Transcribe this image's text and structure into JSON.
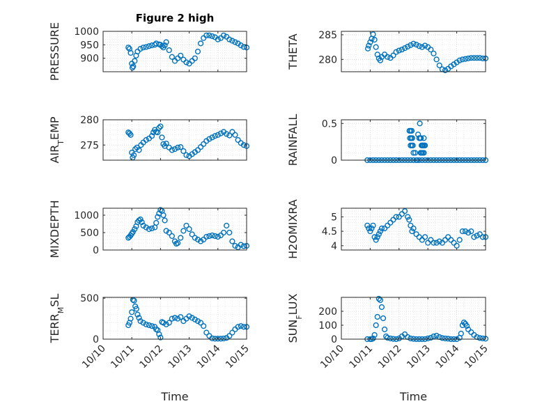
{
  "figure": {
    "title": "Figure 2 high",
    "marker_color": "#0072BD",
    "x_tick_labels": [
      "10/10",
      "10/11",
      "10/12",
      "10/13",
      "10/14",
      "10/15"
    ]
  },
  "chart_data": [
    {
      "type": "scatter",
      "id": "pressure",
      "ylabel": "PRESSURE",
      "xlabel": "",
      "xlim": [
        0,
        5
      ],
      "ylim": [
        850,
        1000
      ],
      "yticks": [
        900,
        950,
        1000
      ],
      "x": [
        0.88,
        0.92,
        0.96,
        1.0,
        1.02,
        1.05,
        1.1,
        1.15,
        1.2,
        1.3,
        1.4,
        1.5,
        1.6,
        1.7,
        1.8,
        1.85,
        1.95,
        2.0,
        2.05,
        2.1,
        2.15,
        2.2,
        2.3,
        2.4,
        2.5,
        2.6,
        2.7,
        2.8,
        2.9,
        3.0,
        3.1,
        3.2,
        3.3,
        3.4,
        3.5,
        3.6,
        3.7,
        3.8,
        3.9,
        4.0,
        4.1,
        4.2,
        4.3,
        4.4,
        4.5,
        4.6,
        4.7,
        4.8,
        4.9,
        5.0
      ],
      "y": [
        940,
        935,
        920,
        880,
        865,
        870,
        890,
        910,
        925,
        935,
        940,
        942,
        945,
        948,
        950,
        955,
        952,
        950,
        945,
        940,
        948,
        960,
        930,
        905,
        890,
        900,
        910,
        895,
        885,
        880,
        890,
        900,
        925,
        955,
        975,
        985,
        985,
        982,
        978,
        970,
        975,
        985,
        980,
        970,
        965,
        960,
        955,
        948,
        942,
        940
      ]
    },
    {
      "type": "scatter",
      "id": "theta",
      "ylabel": "THETA",
      "xlabel": "",
      "xlim": [
        0,
        5
      ],
      "ylim": [
        277.5,
        285.7
      ],
      "yticks": [
        280,
        285
      ],
      "x": [
        0.92,
        0.95,
        1.0,
        1.05,
        1.1,
        1.15,
        1.2,
        1.25,
        1.3,
        1.35,
        1.4,
        1.5,
        1.6,
        1.7,
        1.8,
        1.9,
        2.0,
        2.1,
        2.2,
        2.3,
        2.4,
        2.5,
        2.6,
        2.7,
        2.8,
        2.9,
        3.0,
        3.1,
        3.2,
        3.3,
        3.4,
        3.5,
        3.6,
        3.7,
        3.8,
        3.9,
        4.0,
        4.1,
        4.2,
        4.3,
        4.4,
        4.5,
        4.6,
        4.7,
        4.8,
        4.9,
        5.0
      ],
      "y": [
        282.2,
        282.8,
        283.5,
        284.2,
        285.1,
        284.0,
        282.5,
        281.0,
        280.2,
        279.8,
        280.5,
        281.0,
        280.5,
        280.3,
        280.8,
        281.5,
        281.8,
        282.0,
        282.3,
        282.6,
        282.9,
        283.2,
        283.0,
        282.7,
        282.5,
        282.8,
        282.5,
        282.0,
        281.2,
        280.0,
        278.8,
        278.0,
        277.8,
        278.1,
        278.6,
        279.0,
        279.4,
        279.8,
        280.0,
        280.1,
        280.2,
        280.3,
        280.3,
        280.3,
        280.3,
        280.2,
        280.2
      ]
    },
    {
      "type": "scatter",
      "id": "air_temp",
      "ylabel": "AIR_TEMP",
      "xlabel": "",
      "xlim": [
        0,
        5
      ],
      "ylim": [
        272,
        280
      ],
      "yticks": [
        275,
        280
      ],
      "x": [
        0.88,
        0.92,
        0.96,
        1.0,
        1.03,
        1.07,
        1.12,
        1.18,
        1.25,
        1.32,
        1.4,
        1.5,
        1.6,
        1.7,
        1.75,
        1.8,
        1.85,
        1.9,
        1.95,
        2.0,
        2.05,
        2.1,
        2.15,
        2.2,
        2.3,
        2.4,
        2.5,
        2.6,
        2.7,
        2.8,
        2.9,
        3.0,
        3.1,
        3.2,
        3.3,
        3.4,
        3.5,
        3.6,
        3.7,
        3.8,
        3.9,
        4.0,
        4.1,
        4.2,
        4.3,
        4.4,
        4.5,
        4.6,
        4.7,
        4.8,
        4.9,
        5.0
      ],
      "y": [
        277.5,
        277.3,
        277.0,
        273.5,
        272.5,
        273.0,
        274.2,
        274.5,
        274.0,
        275.0,
        275.5,
        276.0,
        276.3,
        276.8,
        277.5,
        278.0,
        277.6,
        277.5,
        278.4,
        278.7,
        276.5,
        275.2,
        274.8,
        275.3,
        274.5,
        274.0,
        274.2,
        274.5,
        274.6,
        273.8,
        273.0,
        272.8,
        273.2,
        273.6,
        274.0,
        274.6,
        275.2,
        275.8,
        276.2,
        276.5,
        276.8,
        277.0,
        277.3,
        277.6,
        277.2,
        276.9,
        277.6,
        277.0,
        276.0,
        275.4,
        275.0,
        274.8
      ]
    },
    {
      "type": "scatter",
      "id": "rainfall",
      "ylabel": "RAINFALL",
      "xlabel": "",
      "xlim": [
        0,
        5
      ],
      "ylim": [
        0,
        0.55
      ],
      "yticks": [
        0,
        0.5
      ],
      "x": [
        0.9,
        1.0,
        1.1,
        1.2,
        1.3,
        1.4,
        1.5,
        1.6,
        1.7,
        1.8,
        1.9,
        2.0,
        2.1,
        2.2,
        2.3,
        2.4,
        2.5,
        2.6,
        2.7,
        2.8,
        2.9,
        3.0,
        3.1,
        3.2,
        3.3,
        3.4,
        3.5,
        3.6,
        3.7,
        3.8,
        3.9,
        4.0,
        4.1,
        4.2,
        4.3,
        4.4,
        4.5,
        4.6,
        4.7,
        4.8,
        4.9,
        5.0,
        2.36,
        2.4,
        2.44,
        2.38,
        2.42,
        2.46,
        2.4,
        2.44,
        2.48,
        2.5,
        2.56,
        2.62,
        2.66,
        2.7,
        2.74,
        2.78,
        2.82,
        2.86,
        2.72,
        2.76,
        2.8,
        2.84,
        2.88,
        2.75,
        2.78,
        2.82,
        2.86,
        2.9
      ],
      "y": [
        0,
        0,
        0,
        0,
        0,
        0,
        0,
        0,
        0,
        0,
        0,
        0,
        0,
        0,
        0,
        0,
        0,
        0,
        0,
        0,
        0,
        0,
        0,
        0,
        0,
        0,
        0,
        0,
        0,
        0,
        0,
        0,
        0,
        0,
        0,
        0,
        0,
        0,
        0,
        0,
        0,
        0,
        0.4,
        0.4,
        0.4,
        0.3,
        0.3,
        0.3,
        0.2,
        0.2,
        0.2,
        0.1,
        0.1,
        0.0,
        0.35,
        0.3,
        0.3,
        0.2,
        0.2,
        0.1,
        0.5,
        0.3,
        0.2,
        0.2,
        0.2,
        0.1,
        0.1,
        0.1,
        0.3,
        0.2
      ]
    },
    {
      "type": "scatter",
      "id": "mixdepth",
      "ylabel": "MIXDEPTH",
      "xlabel": "",
      "xlim": [
        0,
        5
      ],
      "ylim": [
        0,
        1200
      ],
      "yticks": [
        0,
        500,
        1000
      ],
      "x": [
        0.88,
        0.92,
        0.96,
        1.0,
        1.04,
        1.1,
        1.15,
        1.2,
        1.25,
        1.3,
        1.35,
        1.4,
        1.5,
        1.6,
        1.7,
        1.8,
        1.85,
        1.9,
        1.95,
        2.0,
        2.05,
        2.1,
        2.15,
        2.2,
        2.3,
        2.4,
        2.5,
        2.55,
        2.6,
        2.7,
        2.8,
        2.9,
        3.0,
        3.1,
        3.2,
        3.3,
        3.4,
        3.5,
        3.6,
        3.7,
        3.8,
        3.9,
        4.0,
        4.1,
        4.2,
        4.3,
        4.4,
        4.5,
        4.6,
        4.7,
        4.8,
        4.9,
        5.0
      ],
      "y": [
        350,
        380,
        420,
        470,
        520,
        600,
        680,
        800,
        850,
        880,
        800,
        700,
        650,
        600,
        620,
        650,
        780,
        950,
        1050,
        1150,
        1120,
        1000,
        850,
        550,
        500,
        400,
        250,
        180,
        200,
        350,
        550,
        700,
        600,
        450,
        350,
        300,
        250,
        300,
        380,
        400,
        420,
        400,
        380,
        420,
        500,
        700,
        500,
        250,
        120,
        80,
        150,
        110,
        120
      ]
    },
    {
      "type": "scatter",
      "id": "h2omixra",
      "ylabel": "H2OMIXRA",
      "xlabel": "",
      "xlim": [
        0,
        5
      ],
      "ylim": [
        3.85,
        5.3
      ],
      "yticks": [
        4,
        4.5,
        5
      ],
      "x": [
        0.9,
        0.95,
        1.0,
        1.05,
        1.1,
        1.15,
        1.2,
        1.25,
        1.3,
        1.35,
        1.4,
        1.5,
        1.6,
        1.7,
        1.8,
        1.9,
        2.0,
        2.1,
        2.2,
        2.3,
        2.35,
        2.4,
        2.45,
        2.5,
        2.6,
        2.7,
        2.8,
        2.9,
        3.0,
        3.1,
        3.2,
        3.3,
        3.4,
        3.5,
        3.6,
        3.7,
        3.8,
        3.9,
        4.0,
        4.1,
        4.2,
        4.3,
        4.4,
        4.5,
        4.6,
        4.7,
        4.8,
        4.9,
        5.0
      ],
      "y": [
        4.7,
        4.6,
        4.5,
        4.6,
        4.7,
        4.3,
        4.2,
        4.3,
        4.4,
        4.5,
        4.6,
        4.6,
        4.7,
        4.8,
        4.9,
        5.0,
        5.0,
        5.1,
        5.2,
        5.0,
        4.9,
        4.7,
        4.5,
        4.6,
        4.4,
        4.3,
        4.2,
        4.3,
        4.1,
        4.2,
        4.1,
        4.1,
        4.15,
        4.1,
        4.2,
        4.3,
        4.2,
        4.1,
        4.0,
        4.2,
        4.5,
        4.5,
        4.45,
        4.5,
        4.3,
        4.35,
        4.4,
        4.3,
        4.3
      ]
    },
    {
      "type": "scatter",
      "id": "terr_msl",
      "ylabel": "TERR_MSL",
      "xlabel": "Time",
      "xlim": [
        0,
        5
      ],
      "ylim": [
        0,
        510
      ],
      "yticks": [
        0,
        500
      ],
      "x": [
        0.88,
        0.92,
        0.96,
        1.0,
        1.04,
        1.08,
        1.12,
        1.16,
        1.2,
        1.25,
        1.3,
        1.4,
        1.5,
        1.6,
        1.7,
        1.8,
        1.85,
        1.9,
        1.95,
        2.0,
        2.05,
        2.1,
        2.2,
        2.3,
        2.4,
        2.5,
        2.6,
        2.7,
        2.8,
        2.9,
        3.0,
        3.1,
        3.2,
        3.3,
        3.4,
        3.5,
        3.6,
        3.7,
        3.8,
        3.9,
        4.0,
        4.1,
        4.2,
        4.3,
        4.4,
        4.5,
        4.6,
        4.7,
        4.8,
        4.9,
        5.0
      ],
      "y": [
        170,
        200,
        250,
        330,
        480,
        470,
        400,
        370,
        300,
        260,
        220,
        200,
        180,
        170,
        160,
        150,
        120,
        110,
        60,
        20,
        210,
        200,
        180,
        200,
        250,
        260,
        250,
        270,
        220,
        250,
        280,
        260,
        240,
        220,
        200,
        160,
        80,
        40,
        10,
        5,
        5,
        5,
        8,
        15,
        40,
        80,
        120,
        150,
        160,
        150,
        150
      ]
    },
    {
      "type": "scatter",
      "id": "sun_flux",
      "ylabel": "SUN_FLUX",
      "xlabel": "Time",
      "xlim": [
        0,
        5
      ],
      "ylim": [
        0,
        300
      ],
      "yticks": [
        0,
        100,
        200
      ],
      "x": [
        0.9,
        1.0,
        1.05,
        1.1,
        1.15,
        1.2,
        1.25,
        1.3,
        1.35,
        1.4,
        1.45,
        1.5,
        1.55,
        1.6,
        1.7,
        1.8,
        1.9,
        2.0,
        2.1,
        2.2,
        2.3,
        2.4,
        2.5,
        2.6,
        2.7,
        2.8,
        2.9,
        3.0,
        3.1,
        3.2,
        3.3,
        3.4,
        3.5,
        3.6,
        3.7,
        3.8,
        3.9,
        4.0,
        4.1,
        4.15,
        4.2,
        4.25,
        4.3,
        4.35,
        4.4,
        4.5,
        4.6,
        4.7,
        4.8,
        4.9,
        5.0
      ],
      "y": [
        0,
        0,
        0,
        5,
        30,
        100,
        160,
        290,
        280,
        230,
        150,
        70,
        20,
        10,
        5,
        2,
        0,
        5,
        20,
        35,
        15,
        5,
        2,
        0,
        0,
        0,
        0,
        5,
        10,
        20,
        25,
        15,
        8,
        5,
        3,
        0,
        0,
        0,
        10,
        40,
        100,
        120,
        110,
        95,
        70,
        50,
        30,
        15,
        8,
        5,
        3
      ]
    }
  ]
}
